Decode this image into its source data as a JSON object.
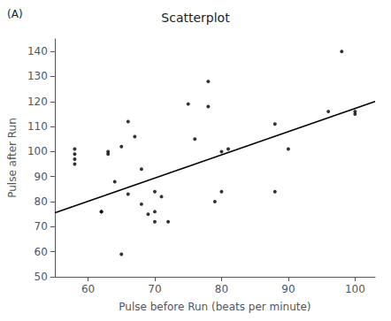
{
  "chart_data": {
    "type": "scatter",
    "title": "Scatterplot",
    "annotation": "(A)",
    "xlabel": "Pulse before Run (beats per minute)",
    "ylabel": "Pulse after Run",
    "xlim": [
      55,
      103
    ],
    "ylim": [
      50,
      145
    ],
    "xticks": [
      60,
      70,
      80,
      90,
      100
    ],
    "yticks": [
      50,
      60,
      70,
      80,
      90,
      100,
      110,
      120,
      130,
      140
    ],
    "grid": false,
    "series": [
      {
        "type": "scatter",
        "color": "black",
        "marker": "circle",
        "x": [
          58,
          58,
          58,
          58,
          62,
          62,
          63,
          63,
          64,
          65,
          65,
          66,
          66,
          67,
          68,
          68,
          69,
          70,
          70,
          70,
          71,
          72,
          75,
          76,
          78,
          78,
          79,
          80,
          80,
          81,
          88,
          88,
          90,
          96,
          98,
          100,
          100
        ],
        "values": [
          95,
          97,
          99,
          101,
          76,
          76,
          99,
          100,
          88,
          59,
          102,
          112,
          83,
          106,
          79,
          93,
          75,
          72,
          76,
          84,
          82,
          72,
          119,
          105,
          118,
          128,
          80,
          84,
          100,
          101,
          84,
          111,
          101,
          116,
          140,
          116,
          115
        ]
      },
      {
        "type": "line",
        "color": "black",
        "line_style": "solid",
        "x": [
          55,
          103
        ],
        "values": [
          75.5,
          120
        ]
      }
    ]
  }
}
